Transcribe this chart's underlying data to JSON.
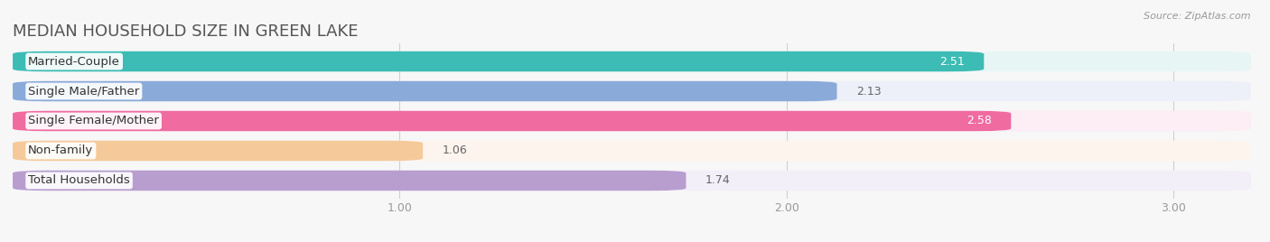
{
  "title": "MEDIAN HOUSEHOLD SIZE IN GREEN LAKE",
  "source": "Source: ZipAtlas.com",
  "categories": [
    "Married-Couple",
    "Single Male/Father",
    "Single Female/Mother",
    "Non-family",
    "Total Households"
  ],
  "values": [
    2.51,
    2.13,
    2.58,
    1.06,
    1.74
  ],
  "bar_colors": [
    "#3cbcb5",
    "#8aaada",
    "#f06ba0",
    "#f5c99a",
    "#b89ecf"
  ],
  "bar_bg_colors": [
    "#e8f5f5",
    "#edf0f9",
    "#fdedf4",
    "#fdf4ed",
    "#f2eff8"
  ],
  "value_inside": [
    true,
    false,
    true,
    false,
    false
  ],
  "value_colors_inside": [
    "#ffffff",
    "#777777",
    "#ffffff",
    "#777777",
    "#777777"
  ],
  "xlim": [
    0.0,
    3.2
  ],
  "xticks": [
    1.0,
    2.0,
    3.0
  ],
  "background_color": "#f7f7f7",
  "bar_height": 0.68,
  "title_fontsize": 13,
  "label_fontsize": 9.5,
  "tick_fontsize": 9,
  "value_fontsize": 9
}
